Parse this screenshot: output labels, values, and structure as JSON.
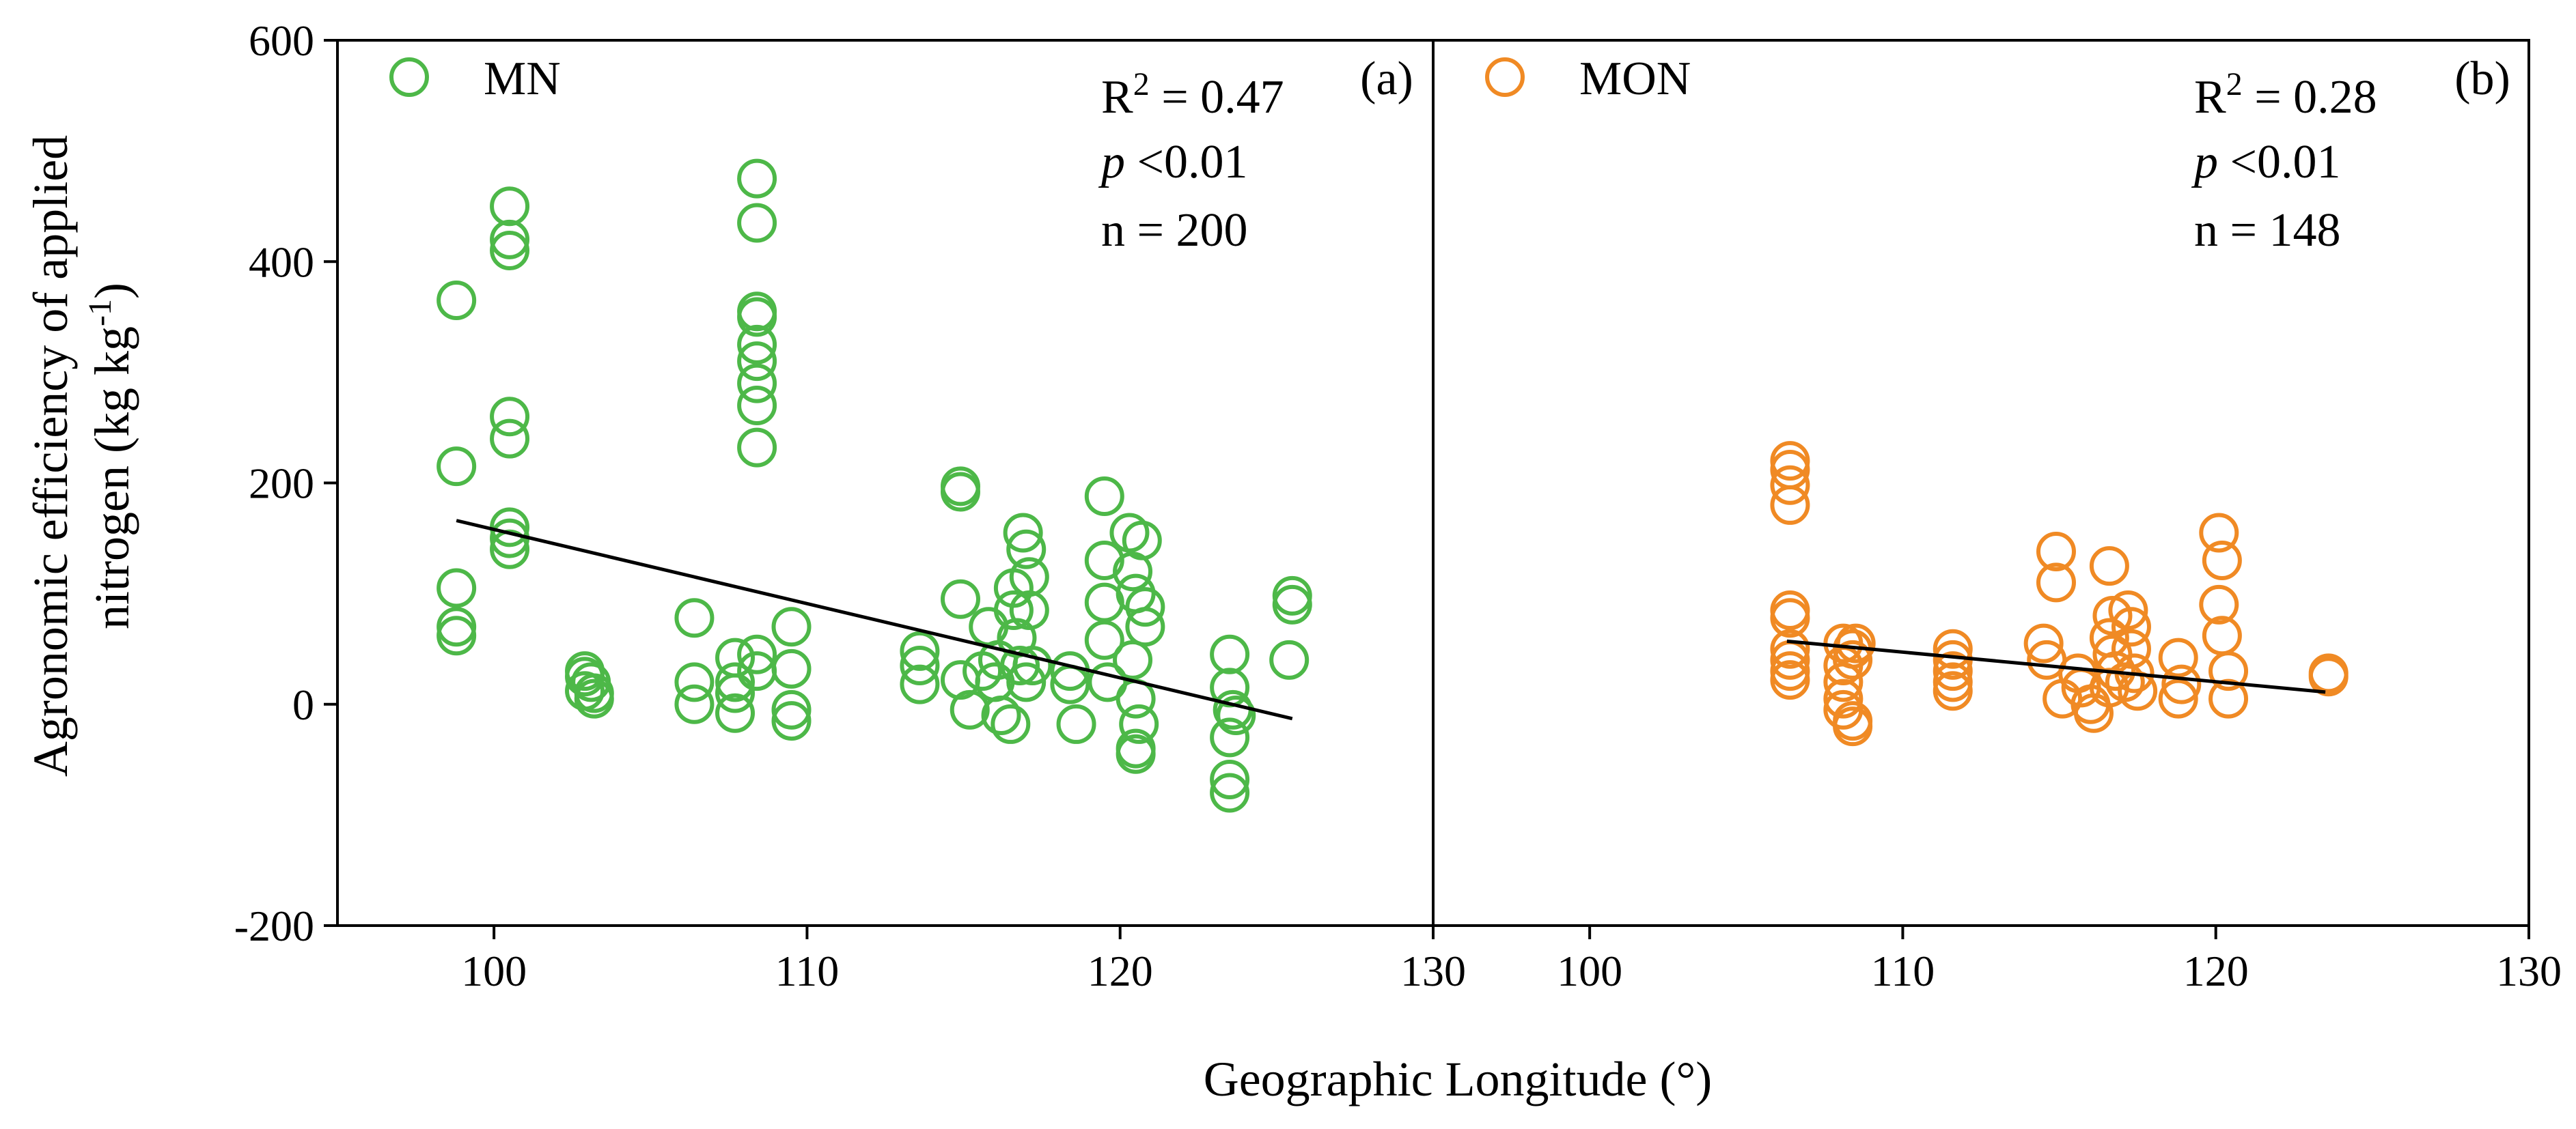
{
  "chart_data": {
    "type": "scatter",
    "xlabel": "Geographic Longitude (°)",
    "ylabel_line1": "Agronomic efficiency of applied",
    "ylabel_line2_prefix": "nitrogen (kg kg",
    "ylabel_line2_exp": "-1",
    "ylabel_line2_suffix": ")",
    "ylim": [
      -200,
      600
    ],
    "yticks": [
      -200,
      0,
      200,
      400,
      600
    ],
    "ytick_labels": [
      "-200",
      "0",
      "200",
      "400",
      "600"
    ],
    "panels": [
      {
        "id": "a",
        "panel_label": "(a)",
        "legend": "MN",
        "color": "#4db848",
        "xlim": [
          95,
          130
        ],
        "xticks": [
          100,
          110,
          120,
          130
        ],
        "xtick_labels": [
          "100",
          "110",
          "120",
          "130"
        ],
        "stats": {
          "r2_prefix": "R",
          "r2_exp": "2",
          "r2_value": " = 0.47",
          "p_symbol": "p",
          "p_value": " <0.01",
          "n": "n = 200"
        },
        "fit": {
          "x": [
            98.8,
            125.5
          ],
          "y": [
            166,
            -13
          ]
        },
        "points": [
          [
            98.8,
            365
          ],
          [
            98.8,
            215
          ],
          [
            98.8,
            105
          ],
          [
            98.8,
            70
          ],
          [
            98.8,
            62
          ],
          [
            100.5,
            450
          ],
          [
            100.5,
            420
          ],
          [
            100.5,
            410
          ],
          [
            100.5,
            260
          ],
          [
            100.5,
            240
          ],
          [
            100.5,
            160
          ],
          [
            100.5,
            150
          ],
          [
            100.5,
            140
          ],
          [
            102.9,
            30
          ],
          [
            102.9,
            25
          ],
          [
            102.9,
            12
          ],
          [
            103.1,
            20
          ],
          [
            103.2,
            10
          ],
          [
            103.2,
            5
          ],
          [
            106.4,
            78
          ],
          [
            106.4,
            20
          ],
          [
            106.4,
            0
          ],
          [
            107.7,
            42
          ],
          [
            107.7,
            20
          ],
          [
            107.7,
            10
          ],
          [
            107.7,
            -8
          ],
          [
            108.4,
            475
          ],
          [
            108.4,
            435
          ],
          [
            108.4,
            355
          ],
          [
            108.4,
            350
          ],
          [
            108.4,
            325
          ],
          [
            108.4,
            310
          ],
          [
            108.4,
            290
          ],
          [
            108.4,
            270
          ],
          [
            108.4,
            232
          ],
          [
            108.4,
            45
          ],
          [
            108.4,
            30
          ],
          [
            109.5,
            70
          ],
          [
            109.5,
            32
          ],
          [
            109.5,
            -5
          ],
          [
            109.5,
            -15
          ],
          [
            113.6,
            48
          ],
          [
            113.6,
            35
          ],
          [
            113.6,
            18
          ],
          [
            114.9,
            197
          ],
          [
            114.9,
            192
          ],
          [
            114.9,
            95
          ],
          [
            114.9,
            22
          ],
          [
            115.2,
            -5
          ],
          [
            115.6,
            30
          ],
          [
            115.8,
            70
          ],
          [
            116.0,
            20
          ],
          [
            116.1,
            40
          ],
          [
            116.2,
            -10
          ],
          [
            116.5,
            -18
          ],
          [
            116.6,
            105
          ],
          [
            116.6,
            85
          ],
          [
            116.7,
            60
          ],
          [
            116.8,
            35
          ],
          [
            116.9,
            155
          ],
          [
            117.0,
            140
          ],
          [
            117.1,
            115
          ],
          [
            117.1,
            85
          ],
          [
            117.0,
            20
          ],
          [
            117.2,
            35
          ],
          [
            118.4,
            30
          ],
          [
            118.4,
            18
          ],
          [
            118.6,
            -18
          ],
          [
            119.5,
            188
          ],
          [
            119.5,
            130
          ],
          [
            119.5,
            92
          ],
          [
            119.5,
            58
          ],
          [
            119.6,
            20
          ],
          [
            120.3,
            155
          ],
          [
            120.4,
            120
          ],
          [
            120.5,
            100
          ],
          [
            120.7,
            148
          ],
          [
            120.8,
            88
          ],
          [
            120.8,
            70
          ],
          [
            120.4,
            40
          ],
          [
            120.5,
            5
          ],
          [
            120.6,
            -18
          ],
          [
            120.5,
            -40
          ],
          [
            120.5,
            -45
          ],
          [
            123.5,
            45
          ],
          [
            123.5,
            15
          ],
          [
            123.6,
            -5
          ],
          [
            123.5,
            -30
          ],
          [
            123.5,
            -68
          ],
          [
            123.5,
            -80
          ],
          [
            123.7,
            -10
          ],
          [
            125.5,
            98
          ],
          [
            125.5,
            90
          ],
          [
            125.4,
            40
          ]
        ]
      },
      {
        "id": "b",
        "panel_label": "(b)",
        "legend": "MON",
        "color": "#f08a24",
        "xlim": [
          95,
          130
        ],
        "xticks": [
          100,
          110,
          120,
          130
        ],
        "xtick_labels": [
          "100",
          "110",
          "120",
          "130"
        ],
        "stats": {
          "r2_prefix": "R",
          "r2_exp": "2",
          "r2_value": " = 0.28",
          "p_symbol": "p",
          "p_value": " <0.01",
          "n": "n = 148"
        },
        "fit": {
          "x": [
            106.3,
            123.5
          ],
          "y": [
            57,
            11
          ]
        },
        "points": [
          [
            106.4,
            220
          ],
          [
            106.4,
            212
          ],
          [
            106.4,
            198
          ],
          [
            106.4,
            180
          ],
          [
            106.4,
            85
          ],
          [
            106.4,
            78
          ],
          [
            106.4,
            50
          ],
          [
            106.4,
            40
          ],
          [
            106.4,
            30
          ],
          [
            106.4,
            22
          ],
          [
            108.1,
            55
          ],
          [
            108.1,
            35
          ],
          [
            108.1,
            20
          ],
          [
            108.1,
            5
          ],
          [
            108.1,
            -5
          ],
          [
            108.4,
            50
          ],
          [
            108.4,
            40
          ],
          [
            108.4,
            -15
          ],
          [
            108.4,
            -20
          ],
          [
            108.5,
            55
          ],
          [
            111.6,
            50
          ],
          [
            111.6,
            40
          ],
          [
            111.6,
            30
          ],
          [
            111.6,
            20
          ],
          [
            111.6,
            12
          ],
          [
            114.5,
            55
          ],
          [
            114.6,
            40
          ],
          [
            114.9,
            138
          ],
          [
            114.9,
            110
          ],
          [
            115.1,
            5
          ],
          [
            115.6,
            28
          ],
          [
            115.7,
            15
          ],
          [
            116.0,
            0
          ],
          [
            116.1,
            -8
          ],
          [
            116.6,
            125
          ],
          [
            116.7,
            80
          ],
          [
            116.6,
            60
          ],
          [
            116.7,
            45
          ],
          [
            116.8,
            30
          ],
          [
            116.6,
            15
          ],
          [
            117.1,
            20
          ],
          [
            117.2,
            85
          ],
          [
            117.3,
            70
          ],
          [
            117.3,
            50
          ],
          [
            117.4,
            28
          ],
          [
            117.5,
            12
          ],
          [
            118.8,
            42
          ],
          [
            118.9,
            18
          ],
          [
            118.8,
            5
          ],
          [
            120.1,
            155
          ],
          [
            120.2,
            130
          ],
          [
            120.1,
            90
          ],
          [
            120.2,
            62
          ],
          [
            120.4,
            30
          ],
          [
            120.4,
            5
          ],
          [
            123.6,
            28
          ],
          [
            123.6,
            25
          ]
        ]
      }
    ]
  }
}
